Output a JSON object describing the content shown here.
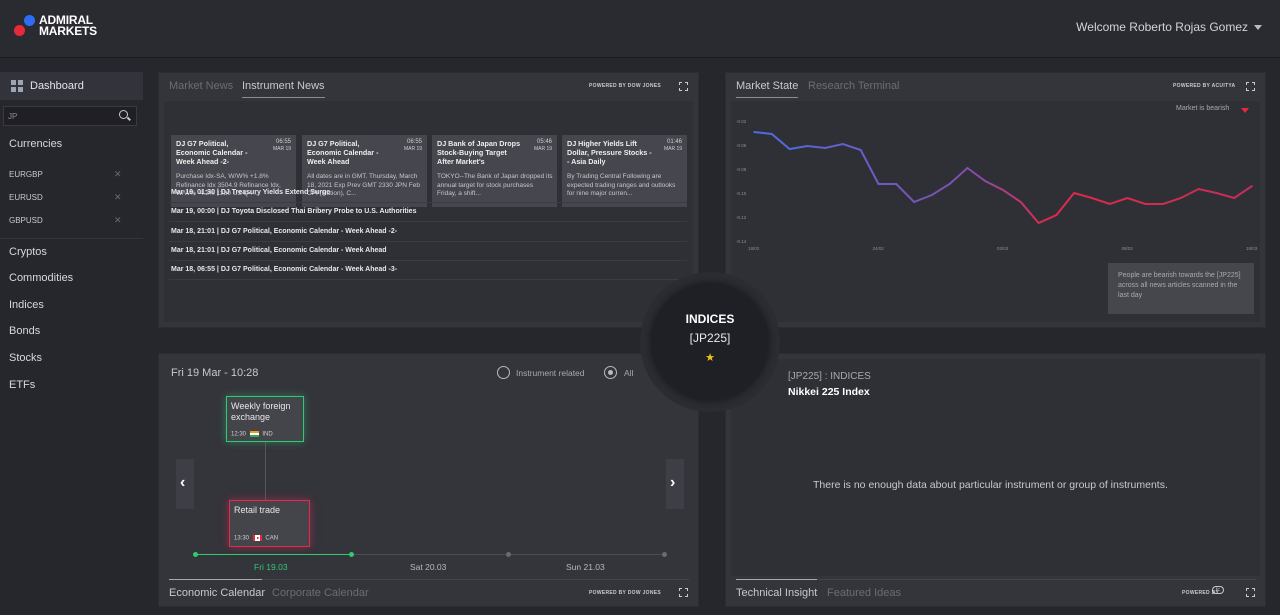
{
  "brand": {
    "logo_line1": "ADMIRAL",
    "logo_line2": "MARKETS"
  },
  "header": {
    "welcome": "Welcome Roberto Rojas Gomez"
  },
  "sidebar": {
    "dashboard_label": "Dashboard",
    "search_value": "JP",
    "currencies_label": "Currencies",
    "pairs": [
      "EURGBP",
      "EURUSD",
      "GBPUSD"
    ],
    "categories": [
      "Cryptos",
      "Commodities",
      "Indices",
      "Bonds",
      "Stocks",
      "ETFs"
    ]
  },
  "news_panel": {
    "tabs": [
      "Market News",
      "Instrument News"
    ],
    "active_tab": "Instrument News",
    "powered_by": "POWERED BY DOW JONES",
    "cards": [
      {
        "title": "DJ G7 Political, Economic Calendar - Week Ahead -2-",
        "time": "06:55",
        "date": "MAR 19",
        "body": "Purchase Idx-SA, W/W% +1.8% Refinance Idx 3504.9 Refinance Idx, W/W% -4.2% 1230 US Q4 ..."
      },
      {
        "title": "DJ G7 Political, Economic Calendar - Week Ahead",
        "time": "06:55",
        "date": "MAR 19",
        "body": "All dates are in GMT. Thursday, March 18, 2021 Exp Prev GMT 2330 JPN Feb CPI (Nation), C..."
      },
      {
        "title": "DJ Bank of Japan Drops Stock-Buying Target After Market's",
        "time": "05:46",
        "date": "MAR 19",
        "body": "TOKYO--The Bank of Japan dropped its annual target for stock purchases Friday, a shift..."
      },
      {
        "title": "DJ Higher Yields Lift Dollar, Pressure Stocks -- Asia Daily",
        "time": "01:46",
        "date": "MAR 19",
        "body": "By Trading Central Following are expected trading ranges and outlooks for nine major curren..."
      }
    ],
    "headlines": [
      "Mar 19, 01:30 | DJ Treasury Yields Extend Surge",
      "Mar 19, 00:00 | DJ Toyota Disclosed Thai Bribery Probe to U.S. Authorities",
      "Mar 18, 21:01 | DJ G7 Political, Economic Calendar - Week Ahead -2-",
      "Mar 18, 21:01 | DJ G7 Political, Economic Calendar - Week Ahead",
      "Mar 18, 06:55 | DJ G7 Political, Economic Calendar - Week Ahead -3-"
    ]
  },
  "market_panel": {
    "tabs": [
      "Market State",
      "Research Terminal"
    ],
    "active_tab": "Market State",
    "powered_by": "POWERED BY ACUITYA",
    "bearish_label": "Market is bearish",
    "bearish_note": "People are bearish towards the [JP225] across all news articles scanned in the last day",
    "colors": {
      "line_start": "#4a6ee0",
      "line_end": "#e0294a",
      "bearish_arrow": "#e8293b"
    }
  },
  "chart_data": {
    "type": "line",
    "title": "",
    "xlabel": "",
    "ylabel": "",
    "x_tick_labels": [
      "18/02",
      "24/02",
      "02/03",
      "08/03",
      "18/03"
    ],
    "y_tick_labels": [
      "-0.02",
      "-0.06",
      "-0.08",
      "-0.10",
      "-0.12",
      "-0.14"
    ],
    "ylim": [
      -0.14,
      -0.02
    ],
    "series": [
      {
        "values": [
          -0.031,
          -0.033,
          -0.048,
          -0.045,
          -0.047,
          -0.043,
          -0.049,
          -0.083,
          -0.083,
          -0.101,
          -0.094,
          -0.083,
          -0.067,
          -0.08,
          -0.089,
          -0.101,
          -0.122,
          -0.114,
          -0.092,
          -0.097,
          -0.103,
          -0.097,
          -0.103,
          -0.103,
          -0.097,
          -0.088,
          -0.092,
          -0.097,
          -0.085
        ]
      }
    ]
  },
  "center": {
    "category": "INDICES",
    "symbol": "[JP225]",
    "star": "★"
  },
  "calendar_panel": {
    "date_label": "Fri 19 Mar - 10:28",
    "filter_instrument": "Instrument related",
    "filter_all": "All",
    "events": [
      {
        "title": "Weekly foreign exchange",
        "time": "12:30",
        "country": "IND"
      },
      {
        "title": "Retail trade",
        "time": "13:30",
        "country": "CAN"
      }
    ],
    "days": [
      "Fri 19.03",
      "Sat 20.03",
      "Sun 21.03"
    ],
    "tabs": [
      "Economic Calendar",
      "Corporate Calendar"
    ],
    "active_tab": "Economic Calendar",
    "powered_by": "POWERED BY DOW JONES",
    "colors": {
      "green": "#2ecc71",
      "red": "#e8294f"
    }
  },
  "insight_panel": {
    "instrument_line": "[JP225] : INDICES",
    "instrument_name": "Nikkei 225 Index",
    "no_data_message": "There is no enough data about particular instrument or group of instruments.",
    "tabs": [
      "Technical Insight",
      "Featured Ideas"
    ],
    "active_tab": "Technical Insight",
    "powered_by": "POWERED BY"
  }
}
